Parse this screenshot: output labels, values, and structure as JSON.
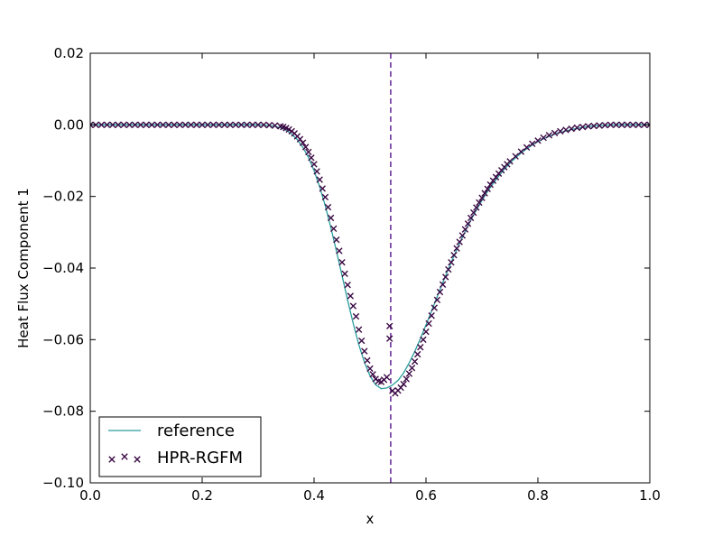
{
  "chart_data": {
    "type": "line",
    "title": "",
    "xlabel": "x",
    "ylabel": "Heat Flux Component 1",
    "xlim": [
      0.0,
      1.0
    ],
    "ylim": [
      -0.1,
      0.02
    ],
    "xticks": [
      "0.0",
      "0.2",
      "0.4",
      "0.6",
      "0.8",
      "1.0"
    ],
    "yticks": [
      "0.02",
      "0.00",
      "−0.02",
      "−0.04",
      "−0.06",
      "−0.08",
      "−0.10"
    ],
    "grid": false,
    "legend_position": "lower-left",
    "interface_line": {
      "x": 0.537,
      "style": "dashed",
      "color": "#4b0082"
    },
    "series": [
      {
        "name": "reference",
        "style": "line",
        "color": "#2a9d9d",
        "x": [
          0.0,
          0.02,
          0.04,
          0.06,
          0.08,
          0.1,
          0.12,
          0.14,
          0.16,
          0.18,
          0.2,
          0.22,
          0.24,
          0.26,
          0.28,
          0.3,
          0.31,
          0.32,
          0.33,
          0.34,
          0.35,
          0.36,
          0.37,
          0.38,
          0.39,
          0.4,
          0.41,
          0.42,
          0.43,
          0.44,
          0.45,
          0.46,
          0.47,
          0.48,
          0.49,
          0.5,
          0.51,
          0.52,
          0.53,
          0.54,
          0.55,
          0.56,
          0.57,
          0.58,
          0.59,
          0.6,
          0.61,
          0.62,
          0.63,
          0.64,
          0.65,
          0.66,
          0.67,
          0.68,
          0.69,
          0.7,
          0.71,
          0.72,
          0.73,
          0.74,
          0.75,
          0.76,
          0.77,
          0.78,
          0.79,
          0.8,
          0.81,
          0.82,
          0.83,
          0.84,
          0.85,
          0.86,
          0.87,
          0.88,
          0.89,
          0.9,
          0.92,
          0.94,
          0.96,
          0.98,
          1.0
        ],
        "y": [
          0.0,
          0.0,
          0.0,
          0.0,
          0.0,
          0.0,
          0.0,
          0.0,
          0.0,
          0.0,
          0.0,
          0.0,
          0.0,
          0.0,
          0.0,
          0.0,
          -0.0001,
          -0.0002,
          -0.0004,
          -0.0008,
          -0.0015,
          -0.0026,
          -0.0041,
          -0.0063,
          -0.0091,
          -0.0128,
          -0.0173,
          -0.0226,
          -0.0287,
          -0.0353,
          -0.0421,
          -0.049,
          -0.0555,
          -0.0614,
          -0.0663,
          -0.0701,
          -0.0726,
          -0.0737,
          -0.0735,
          -0.0727,
          -0.0714,
          -0.0693,
          -0.0665,
          -0.0633,
          -0.0597,
          -0.0559,
          -0.052,
          -0.048,
          -0.0441,
          -0.0403,
          -0.0366,
          -0.0331,
          -0.0298,
          -0.0267,
          -0.0238,
          -0.0211,
          -0.0186,
          -0.0164,
          -0.0143,
          -0.0124,
          -0.0107,
          -0.0092,
          -0.0079,
          -0.0067,
          -0.0056,
          -0.0047,
          -0.0039,
          -0.0032,
          -0.0026,
          -0.0021,
          -0.0017,
          -0.0013,
          -0.001,
          -0.0007,
          -0.0005,
          -0.0003,
          -0.0001,
          0.0,
          0.0,
          0.0,
          0.0
        ]
      },
      {
        "name": "HPR-RGFM",
        "style": "scatter",
        "marker": "x",
        "color": "#3b0a45",
        "x": [
          0.0,
          0.01,
          0.02,
          0.03,
          0.04,
          0.05,
          0.06,
          0.07,
          0.08,
          0.09,
          0.1,
          0.11,
          0.12,
          0.13,
          0.14,
          0.15,
          0.16,
          0.17,
          0.18,
          0.19,
          0.2,
          0.21,
          0.22,
          0.23,
          0.24,
          0.25,
          0.26,
          0.27,
          0.28,
          0.29,
          0.3,
          0.31,
          0.32,
          0.33,
          0.34,
          0.345,
          0.35,
          0.355,
          0.36,
          0.365,
          0.37,
          0.375,
          0.38,
          0.385,
          0.39,
          0.395,
          0.4,
          0.405,
          0.41,
          0.415,
          0.42,
          0.425,
          0.43,
          0.435,
          0.44,
          0.445,
          0.45,
          0.455,
          0.46,
          0.465,
          0.47,
          0.475,
          0.48,
          0.485,
          0.49,
          0.495,
          0.5,
          0.505,
          0.51,
          0.515,
          0.52,
          0.525,
          0.53,
          0.535,
          0.535,
          0.54,
          0.545,
          0.55,
          0.555,
          0.56,
          0.565,
          0.57,
          0.575,
          0.58,
          0.585,
          0.59,
          0.595,
          0.6,
          0.605,
          0.61,
          0.615,
          0.62,
          0.625,
          0.63,
          0.635,
          0.64,
          0.645,
          0.65,
          0.655,
          0.66,
          0.665,
          0.67,
          0.675,
          0.68,
          0.685,
          0.69,
          0.695,
          0.7,
          0.705,
          0.71,
          0.715,
          0.72,
          0.725,
          0.73,
          0.735,
          0.74,
          0.745,
          0.75,
          0.76,
          0.77,
          0.78,
          0.79,
          0.8,
          0.81,
          0.82,
          0.83,
          0.84,
          0.85,
          0.86,
          0.87,
          0.88,
          0.89,
          0.9,
          0.91,
          0.92,
          0.93,
          0.94,
          0.95,
          0.96,
          0.97,
          0.98,
          0.99,
          1.0
        ],
        "y": [
          0.0,
          0.0,
          0.0,
          0.0,
          0.0,
          0.0,
          0.0,
          0.0,
          0.0,
          0.0,
          0.0,
          0.0,
          0.0,
          0.0,
          0.0,
          0.0,
          0.0,
          0.0,
          0.0,
          0.0,
          0.0,
          0.0,
          0.0,
          0.0,
          0.0,
          0.0,
          0.0,
          0.0,
          0.0,
          0.0,
          0.0,
          0.0,
          -0.0001,
          -0.0002,
          -0.0004,
          -0.0006,
          -0.0009,
          -0.0013,
          -0.0018,
          -0.0024,
          -0.0032,
          -0.004,
          -0.005,
          -0.0062,
          -0.0076,
          -0.0092,
          -0.011,
          -0.013,
          -0.0153,
          -0.0178,
          -0.0202,
          -0.023,
          -0.026,
          -0.029,
          -0.0321,
          -0.0352,
          -0.0384,
          -0.0416,
          -0.0447,
          -0.0478,
          -0.0506,
          -0.0535,
          -0.0572,
          -0.0603,
          -0.0632,
          -0.0658,
          -0.0681,
          -0.0697,
          -0.071,
          -0.0716,
          -0.0718,
          -0.0712,
          -0.0705,
          -0.0562,
          -0.0597,
          -0.0743,
          -0.075,
          -0.0742,
          -0.0734,
          -0.0724,
          -0.071,
          -0.0695,
          -0.0679,
          -0.0661,
          -0.0641,
          -0.0621,
          -0.06,
          -0.0578,
          -0.0555,
          -0.0533,
          -0.0511,
          -0.0489,
          -0.0467,
          -0.0446,
          -0.0425,
          -0.0404,
          -0.0384,
          -0.0364,
          -0.0345,
          -0.0327,
          -0.0309,
          -0.0292,
          -0.0276,
          -0.026,
          -0.0245,
          -0.0231,
          -0.0217,
          -0.0204,
          -0.0191,
          -0.0179,
          -0.0167,
          -0.0156,
          -0.0146,
          -0.0136,
          -0.0127,
          -0.0118,
          -0.011,
          -0.0102,
          -0.0088,
          -0.0075,
          -0.0063,
          -0.0053,
          -0.0044,
          -0.0036,
          -0.0029,
          -0.0023,
          -0.0018,
          -0.0014,
          -0.0011,
          -0.0008,
          -0.0006,
          -0.0004,
          -0.0003,
          -0.0002,
          -0.0001,
          0.0,
          0.0,
          0.0,
          0.0,
          0.0,
          0.0,
          0.0,
          0.0
        ]
      }
    ]
  }
}
